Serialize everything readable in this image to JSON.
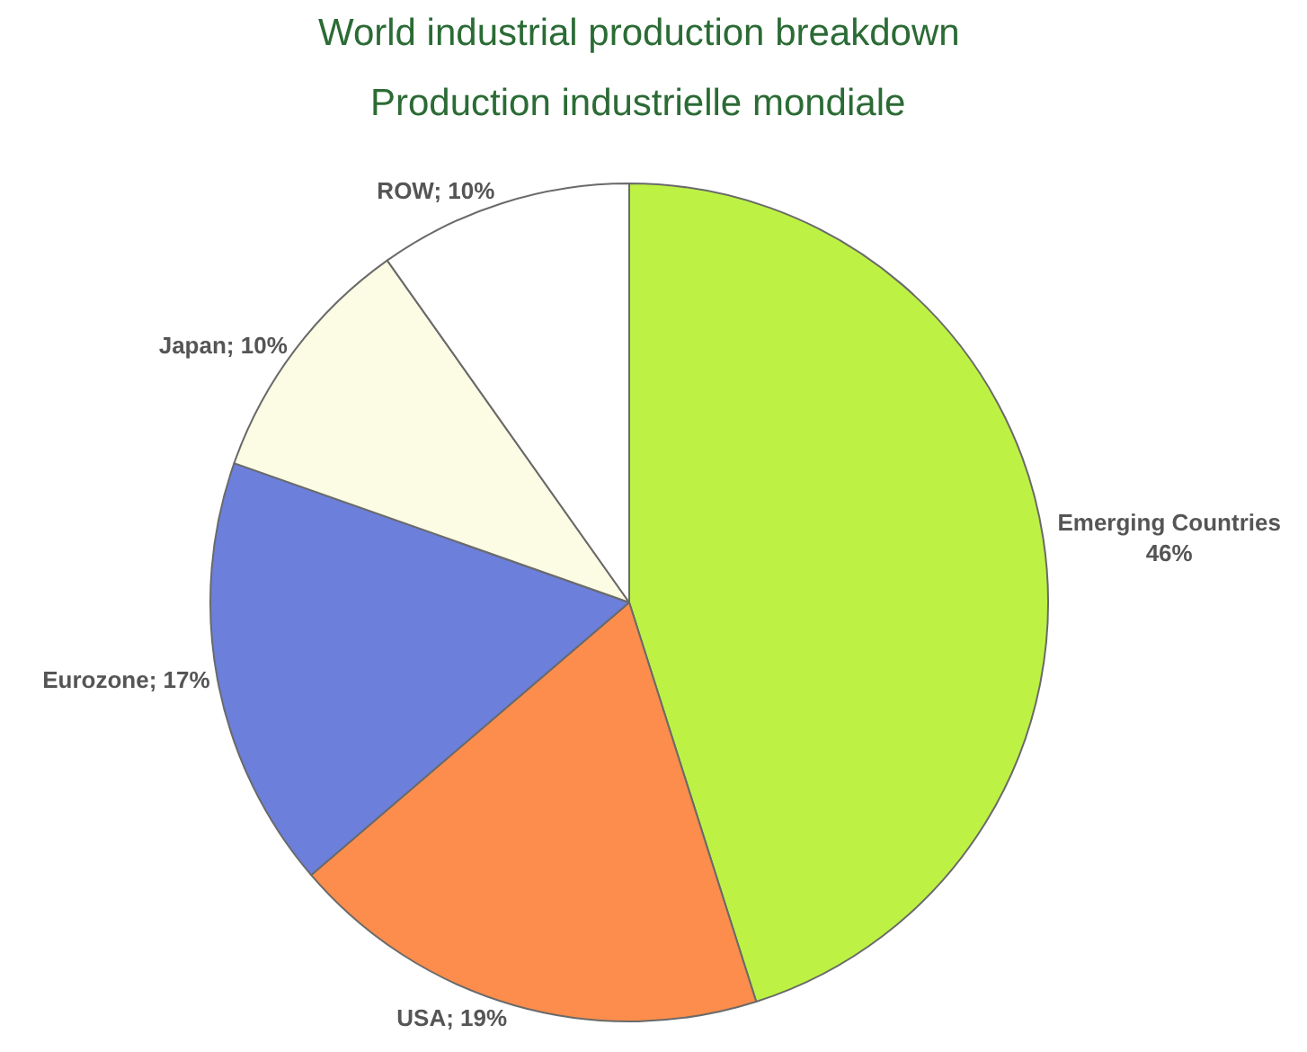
{
  "chart_data": {
    "type": "pie",
    "title": "World industrial production breakdown",
    "subtitle": "Production industrielle mondiale",
    "categories": [
      "Emerging Countries",
      "USA",
      "Eurozone",
      "Japan",
      "ROW"
    ],
    "values": [
      46,
      19,
      17,
      10,
      10
    ],
    "value_labels": [
      "\n46%",
      "; 19%",
      "; 17%",
      "; 10%",
      "; 10%"
    ],
    "colors": [
      "#bdf244",
      "#fc8d4c",
      "#6b7fdb",
      "#fcfbe4",
      "#ffffff"
    ]
  }
}
